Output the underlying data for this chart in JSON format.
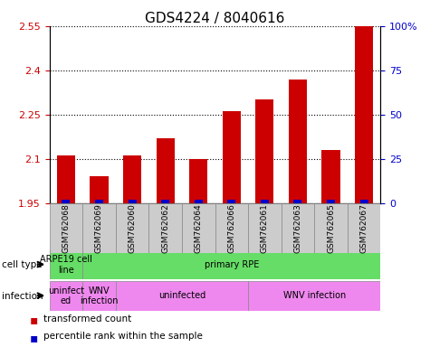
{
  "title": "GDS4224 / 8040616",
  "samples": [
    "GSM762068",
    "GSM762069",
    "GSM762060",
    "GSM762062",
    "GSM762064",
    "GSM762066",
    "GSM762061",
    "GSM762063",
    "GSM762065",
    "GSM762067"
  ],
  "transformed_count": [
    2.11,
    2.04,
    2.11,
    2.17,
    2.1,
    2.26,
    2.3,
    2.37,
    2.13,
    2.55
  ],
  "ylim": [
    1.95,
    2.55
  ],
  "yticks": [
    1.95,
    2.1,
    2.25,
    2.4,
    2.55
  ],
  "ytick_labels": [
    "1.95",
    "2.1",
    "2.25",
    "2.4",
    "2.55"
  ],
  "right_yticks": [
    0,
    25,
    50,
    75,
    100
  ],
  "right_ytick_labels": [
    "0",
    "25",
    "50",
    "75",
    "100%"
  ],
  "bar_color": "#cc0000",
  "percentile_color": "#0000cc",
  "cell_type_groups": [
    {
      "label": "ARPE19 cell\nline",
      "start": 0,
      "end": 1,
      "color": "#66dd66"
    },
    {
      "label": "primary RPE",
      "start": 1,
      "end": 10,
      "color": "#66dd66"
    }
  ],
  "infection_groups": [
    {
      "label": "uninfect\ned",
      "start": 0,
      "end": 1,
      "color": "#ee88ee"
    },
    {
      "label": "WNV\ninfection",
      "start": 1,
      "end": 2,
      "color": "#ee88ee"
    },
    {
      "label": "uninfected",
      "start": 2,
      "end": 6,
      "color": "#ee88ee"
    },
    {
      "label": "WNV infection",
      "start": 6,
      "end": 10,
      "color": "#ee88ee"
    }
  ],
  "tick_label_color_left": "#cc0000",
  "tick_label_color_right": "#0000cc",
  "label_bg_color": "#cccccc",
  "label_edge_color": "#888888"
}
